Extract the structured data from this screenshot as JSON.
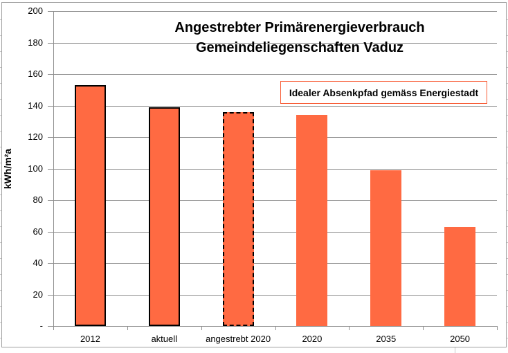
{
  "chart_data": {
    "type": "bar",
    "title_line1": "Angestrebter Primärenergieverbrauch",
    "title_line2": "Gemeindeliegenschaften Vaduz",
    "ylabel": "kWh/m²a",
    "categories": [
      "2012",
      "aktuell",
      "angestrebt 2020",
      "2020",
      "2035",
      "2050"
    ],
    "values": [
      153,
      139,
      136,
      134,
      99,
      63
    ],
    "bar_styles": [
      "solid-border",
      "solid-border",
      "dashed-border",
      "plain",
      "plain",
      "plain"
    ],
    "ylim": [
      0,
      200
    ],
    "ytick_step": 20,
    "ytick_labels": [
      "-",
      "20",
      "40",
      "60",
      "80",
      "100",
      "120",
      "140",
      "160",
      "180",
      "200"
    ],
    "grid": true,
    "legend": "none",
    "annotation": "Idealer Absenkpfad gemäss Energiestadt",
    "colors": {
      "bar_fill": "#FF6A42",
      "bar_border": "#000000",
      "annotation_border": "#F85C35",
      "gridline": "#8E8E8E",
      "axis": "#8E8E8E",
      "frame_border": "#9E9E9E",
      "text": "#000000",
      "background": "#FFFFFF"
    }
  }
}
